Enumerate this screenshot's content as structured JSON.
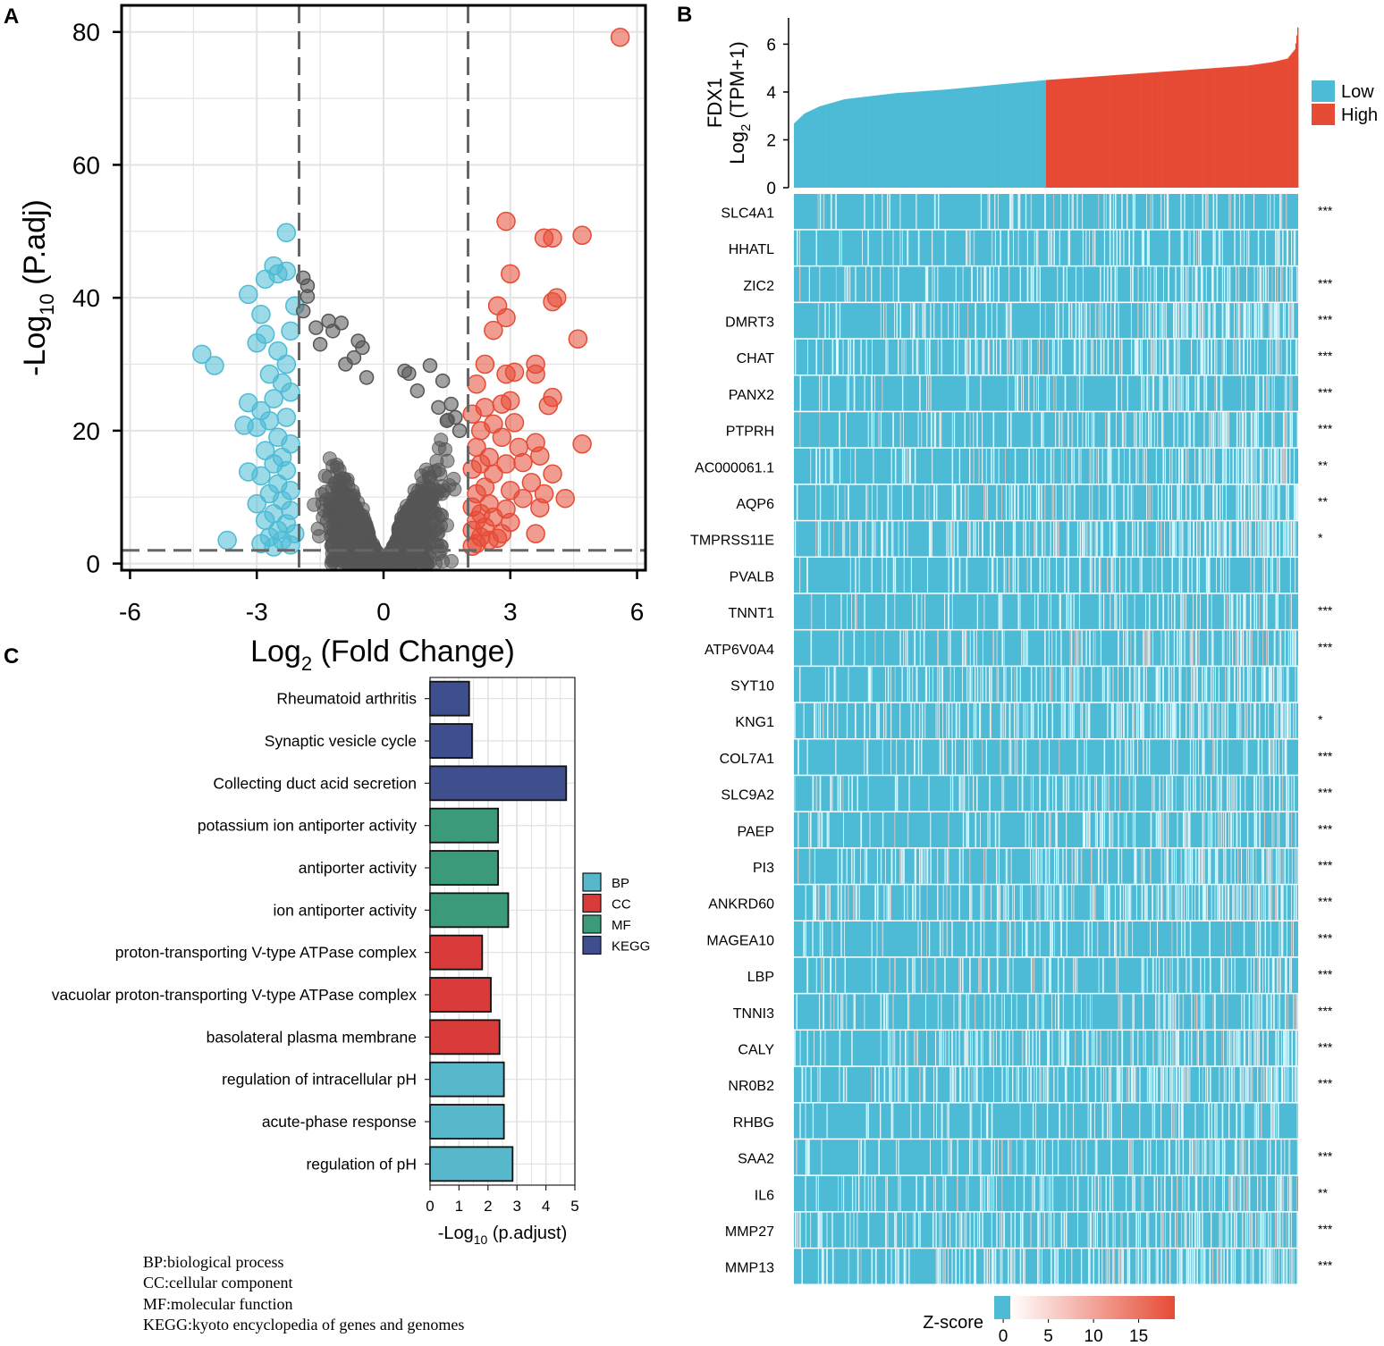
{
  "colors": {
    "up": "#E64B35",
    "down": "#4DBBD5",
    "ns": "#555555",
    "bp": "#58B8CB",
    "cc": "#D93A3A",
    "mf": "#3A9A7A",
    "kegg": "#3F4E8C",
    "heat_low": "#4DBBD5",
    "heat_high": "#E64B35"
  },
  "panel_labels": {
    "a": "A",
    "b": "B",
    "c": "C"
  },
  "chart_data": [
    {
      "id": "volcano",
      "type": "scatter",
      "xlabel_main": "Log",
      "xlabel_sub": "2",
      "xlabel_rest": " (Fold Change)",
      "ylabel_main": "-Log",
      "ylabel_sub": "10",
      "ylabel_rest": " (P.adj)",
      "xlim": [
        -6.2,
        6.2
      ],
      "ylim": [
        -1,
        84
      ],
      "xticks": [
        -6,
        -3,
        0,
        3,
        6
      ],
      "xtick_labels": [
        "-6",
        "-3",
        "0",
        "3",
        "6"
      ],
      "yticks": [
        0,
        20,
        40,
        60,
        80
      ],
      "ytick_labels": [
        "0",
        "20",
        "40",
        "60",
        "80"
      ],
      "vlines": [
        -2,
        2
      ],
      "hline": 2,
      "grid": true,
      "points": [
        {
          "x": 5.6,
          "y": 79.2,
          "g": "up"
        },
        {
          "x": 2.9,
          "y": 51.5,
          "g": "up"
        },
        {
          "x": 3.8,
          "y": 49.0,
          "g": "up"
        },
        {
          "x": 4.0,
          "y": 49.0,
          "g": "up"
        },
        {
          "x": 4.7,
          "y": 49.4,
          "g": "up"
        },
        {
          "x": 3.0,
          "y": 43.6,
          "g": "up"
        },
        {
          "x": 4.1,
          "y": 40.0,
          "g": "up"
        },
        {
          "x": 4.0,
          "y": 39.4,
          "g": "up"
        },
        {
          "x": 2.7,
          "y": 38.8,
          "g": "up"
        },
        {
          "x": 2.9,
          "y": 37.0,
          "g": "up"
        },
        {
          "x": 2.6,
          "y": 35.1,
          "g": "up"
        },
        {
          "x": 4.6,
          "y": 33.8,
          "g": "up"
        },
        {
          "x": 2.4,
          "y": 30.0,
          "g": "up"
        },
        {
          "x": 3.6,
          "y": 30.0,
          "g": "up"
        },
        {
          "x": 2.9,
          "y": 28.5,
          "g": "up"
        },
        {
          "x": 3.1,
          "y": 28.8,
          "g": "up"
        },
        {
          "x": 3.6,
          "y": 28.5,
          "g": "up"
        },
        {
          "x": 2.2,
          "y": 27.0,
          "g": "up"
        },
        {
          "x": 4.0,
          "y": 25.0,
          "g": "up"
        },
        {
          "x": 2.8,
          "y": 24.0,
          "g": "up"
        },
        {
          "x": 3.0,
          "y": 24.5,
          "g": "up"
        },
        {
          "x": 2.4,
          "y": 23.5,
          "g": "up"
        },
        {
          "x": 3.9,
          "y": 23.8,
          "g": "up"
        },
        {
          "x": 2.1,
          "y": 22.5,
          "g": "up"
        },
        {
          "x": 2.6,
          "y": 21.0,
          "g": "up"
        },
        {
          "x": 3.1,
          "y": 21.2,
          "g": "up"
        },
        {
          "x": 2.3,
          "y": 20.0,
          "g": "up"
        },
        {
          "x": 2.8,
          "y": 19.0,
          "g": "up"
        },
        {
          "x": 3.6,
          "y": 18.2,
          "g": "up"
        },
        {
          "x": 4.7,
          "y": 18.0,
          "g": "up"
        },
        {
          "x": 2.2,
          "y": 17.5,
          "g": "up"
        },
        {
          "x": 3.2,
          "y": 17.5,
          "g": "up"
        },
        {
          "x": 2.5,
          "y": 16.0,
          "g": "up"
        },
        {
          "x": 3.7,
          "y": 16.2,
          "g": "up"
        },
        {
          "x": 2.3,
          "y": 15.0,
          "g": "up"
        },
        {
          "x": 2.9,
          "y": 15.0,
          "g": "up"
        },
        {
          "x": 3.3,
          "y": 15.2,
          "g": "up"
        },
        {
          "x": 2.1,
          "y": 14.2,
          "g": "up"
        },
        {
          "x": 2.6,
          "y": 13.5,
          "g": "up"
        },
        {
          "x": 4.0,
          "y": 13.5,
          "g": "up"
        },
        {
          "x": 3.5,
          "y": 12.2,
          "g": "up"
        },
        {
          "x": 2.4,
          "y": 11.5,
          "g": "up"
        },
        {
          "x": 3.0,
          "y": 11.0,
          "g": "up"
        },
        {
          "x": 2.2,
          "y": 10.5,
          "g": "up"
        },
        {
          "x": 3.8,
          "y": 10.5,
          "g": "up"
        },
        {
          "x": 3.3,
          "y": 9.8,
          "g": "up"
        },
        {
          "x": 4.3,
          "y": 9.8,
          "g": "up"
        },
        {
          "x": 2.5,
          "y": 9.0,
          "g": "up"
        },
        {
          "x": 2.1,
          "y": 8.5,
          "g": "up"
        },
        {
          "x": 2.9,
          "y": 8.2,
          "g": "up"
        },
        {
          "x": 3.7,
          "y": 8.4,
          "g": "up"
        },
        {
          "x": 2.3,
          "y": 7.5,
          "g": "up"
        },
        {
          "x": 2.6,
          "y": 7.0,
          "g": "up"
        },
        {
          "x": 2.2,
          "y": 6.5,
          "g": "up"
        },
        {
          "x": 3.0,
          "y": 6.2,
          "g": "up"
        },
        {
          "x": 2.4,
          "y": 5.5,
          "g": "up"
        },
        {
          "x": 2.1,
          "y": 5.0,
          "g": "up"
        },
        {
          "x": 2.8,
          "y": 4.5,
          "g": "up"
        },
        {
          "x": 3.6,
          "y": 4.5,
          "g": "up"
        },
        {
          "x": 2.3,
          "y": 4.0,
          "g": "up"
        },
        {
          "x": 2.5,
          "y": 3.5,
          "g": "up"
        },
        {
          "x": 2.2,
          "y": 3.0,
          "g": "up"
        },
        {
          "x": 2.7,
          "y": 3.8,
          "g": "up"
        },
        {
          "x": 2.1,
          "y": 2.6,
          "g": "up"
        },
        {
          "x": -2.3,
          "y": 49.8,
          "g": "down"
        },
        {
          "x": -2.6,
          "y": 44.8,
          "g": "down"
        },
        {
          "x": -2.3,
          "y": 44.0,
          "g": "down"
        },
        {
          "x": -2.8,
          "y": 42.8,
          "g": "down"
        },
        {
          "x": -2.5,
          "y": 43.6,
          "g": "down"
        },
        {
          "x": -3.2,
          "y": 40.5,
          "g": "down"
        },
        {
          "x": -2.1,
          "y": 38.8,
          "g": "down"
        },
        {
          "x": -2.9,
          "y": 37.5,
          "g": "down"
        },
        {
          "x": -2.2,
          "y": 35.0,
          "g": "down"
        },
        {
          "x": -2.8,
          "y": 34.5,
          "g": "down"
        },
        {
          "x": -3.0,
          "y": 33.2,
          "g": "down"
        },
        {
          "x": -4.3,
          "y": 31.5,
          "g": "down"
        },
        {
          "x": -2.5,
          "y": 32.0,
          "g": "down"
        },
        {
          "x": -4.0,
          "y": 29.8,
          "g": "down"
        },
        {
          "x": -2.3,
          "y": 30.0,
          "g": "down"
        },
        {
          "x": -2.7,
          "y": 28.5,
          "g": "down"
        },
        {
          "x": -2.4,
          "y": 27.2,
          "g": "down"
        },
        {
          "x": -2.2,
          "y": 25.8,
          "g": "down"
        },
        {
          "x": -3.2,
          "y": 24.2,
          "g": "down"
        },
        {
          "x": -2.6,
          "y": 24.8,
          "g": "down"
        },
        {
          "x": -2.9,
          "y": 23.0,
          "g": "down"
        },
        {
          "x": -2.3,
          "y": 22.0,
          "g": "down"
        },
        {
          "x": -2.7,
          "y": 21.5,
          "g": "down"
        },
        {
          "x": -3.3,
          "y": 20.8,
          "g": "down"
        },
        {
          "x": -3.0,
          "y": 20.5,
          "g": "down"
        },
        {
          "x": -2.5,
          "y": 19.0,
          "g": "down"
        },
        {
          "x": -2.2,
          "y": 18.0,
          "g": "down"
        },
        {
          "x": -2.8,
          "y": 17.0,
          "g": "down"
        },
        {
          "x": -2.4,
          "y": 16.0,
          "g": "down"
        },
        {
          "x": -2.6,
          "y": 15.0,
          "g": "down"
        },
        {
          "x": -3.2,
          "y": 13.8,
          "g": "down"
        },
        {
          "x": -2.3,
          "y": 14.0,
          "g": "down"
        },
        {
          "x": -2.9,
          "y": 13.2,
          "g": "down"
        },
        {
          "x": -2.5,
          "y": 12.0,
          "g": "down"
        },
        {
          "x": -2.2,
          "y": 11.0,
          "g": "down"
        },
        {
          "x": -2.7,
          "y": 10.5,
          "g": "down"
        },
        {
          "x": -2.4,
          "y": 9.5,
          "g": "down"
        },
        {
          "x": -3.0,
          "y": 9.0,
          "g": "down"
        },
        {
          "x": -2.2,
          "y": 8.0,
          "g": "down"
        },
        {
          "x": -2.6,
          "y": 7.5,
          "g": "down"
        },
        {
          "x": -2.8,
          "y": 6.5,
          "g": "down"
        },
        {
          "x": -2.3,
          "y": 6.0,
          "g": "down"
        },
        {
          "x": -2.5,
          "y": 5.0,
          "g": "down"
        },
        {
          "x": -2.1,
          "y": 4.5,
          "g": "down"
        },
        {
          "x": -2.7,
          "y": 4.0,
          "g": "down"
        },
        {
          "x": -2.4,
          "y": 3.5,
          "g": "down"
        },
        {
          "x": -3.7,
          "y": 3.5,
          "g": "down"
        },
        {
          "x": -2.9,
          "y": 3.0,
          "g": "down"
        },
        {
          "x": -2.2,
          "y": 2.8,
          "g": "down"
        },
        {
          "x": -2.6,
          "y": 2.5,
          "g": "down"
        },
        {
          "x": -1.9,
          "y": 43.0,
          "g": "ns"
        },
        {
          "x": -1.8,
          "y": 41.8,
          "g": "ns"
        },
        {
          "x": -1.8,
          "y": 40.2,
          "g": "ns"
        },
        {
          "x": -1.9,
          "y": 38.0,
          "g": "ns"
        },
        {
          "x": -1.3,
          "y": 36.5,
          "g": "ns"
        },
        {
          "x": -1.0,
          "y": 36.2,
          "g": "ns"
        },
        {
          "x": -1.2,
          "y": 35.0,
          "g": "ns"
        },
        {
          "x": -1.6,
          "y": 35.5,
          "g": "ns"
        },
        {
          "x": -0.6,
          "y": 33.5,
          "g": "ns"
        },
        {
          "x": -0.5,
          "y": 32.5,
          "g": "ns"
        },
        {
          "x": -0.7,
          "y": 31.0,
          "g": "ns"
        },
        {
          "x": -1.5,
          "y": 33.0,
          "g": "ns"
        },
        {
          "x": -0.9,
          "y": 30.0,
          "g": "ns"
        },
        {
          "x": 0.5,
          "y": 29.0,
          "g": "ns"
        },
        {
          "x": 0.6,
          "y": 28.6,
          "g": "ns"
        },
        {
          "x": 1.1,
          "y": 29.8,
          "g": "ns"
        },
        {
          "x": 0.8,
          "y": 26.0,
          "g": "ns"
        },
        {
          "x": 1.4,
          "y": 27.5,
          "g": "ns"
        },
        {
          "x": 1.6,
          "y": 24.0,
          "g": "ns"
        },
        {
          "x": 1.3,
          "y": 23.5,
          "g": "ns"
        },
        {
          "x": 1.7,
          "y": 22.0,
          "g": "ns"
        },
        {
          "x": 1.5,
          "y": 21.5,
          "g": "ns"
        },
        {
          "x": 1.8,
          "y": 20.0,
          "g": "ns"
        },
        {
          "x": -0.4,
          "y": 28.0,
          "g": "ns"
        }
      ]
    },
    {
      "id": "expression",
      "type": "bar",
      "ylabel_gene": "FDX1",
      "ylabel_main": "Log",
      "ylabel_sub": "2",
      "ylabel_rest": " (TPM+1)",
      "ylim": [
        0,
        6.8
      ],
      "yticks": [
        0,
        2,
        4,
        6
      ],
      "ytick_labels": [
        "0",
        "2",
        "4",
        "6"
      ],
      "n_samples": 540,
      "low_fraction": 0.5,
      "profile_quantiles": [
        0,
        0.02,
        0.05,
        0.1,
        0.2,
        0.3,
        0.4,
        0.5,
        0.6,
        0.7,
        0.8,
        0.9,
        0.95,
        0.98,
        0.995,
        1
      ],
      "profile_values": [
        2.7,
        3.1,
        3.4,
        3.7,
        3.95,
        4.1,
        4.3,
        4.5,
        4.65,
        4.8,
        4.95,
        5.1,
        5.25,
        5.4,
        5.8,
        6.7
      ],
      "legend": [
        {
          "label": "Low",
          "key": "heat_low"
        },
        {
          "label": "High",
          "key": "heat_high"
        }
      ]
    },
    {
      "id": "heatmap",
      "type": "heatmap",
      "genes": [
        "SLC4A1",
        "HHATL",
        "ZIC2",
        "DMRT3",
        "CHAT",
        "PANX2",
        "PTPRH",
        "AC000061.1",
        "AQP6",
        "TMPRSS11E",
        "PVALB",
        "TNNT1",
        "ATP6V0A4",
        "SYT10",
        "KNG1",
        "COL7A1",
        "SLC9A2",
        "PAEP",
        "PI3",
        "ANKRD60",
        "MAGEA10",
        "LBP",
        "TNNI3",
        "CALY",
        "NR0B2",
        "RHBG",
        "SAA2",
        "IL6",
        "MMP27",
        "MMP13"
      ],
      "significance": [
        "***",
        "",
        "***",
        "***",
        "***",
        "***",
        "***",
        "**",
        "**",
        "*",
        "",
        "***",
        "***",
        "",
        "*",
        "***",
        "***",
        "***",
        "***",
        "***",
        "***",
        "***",
        "***",
        "***",
        "***",
        "",
        "***",
        "**",
        "***",
        "***"
      ],
      "colorbar_label": "Z-score",
      "colorbar_range": [
        -1,
        19
      ],
      "colorbar_ticks": [
        0,
        5,
        10,
        15
      ],
      "colorbar_tick_labels": [
        "0",
        "5",
        "10",
        "15"
      ]
    },
    {
      "id": "enrichment",
      "type": "bar",
      "orientation": "horizontal",
      "categories": [
        "Rheumatoid arthritis",
        "Synaptic vesicle cycle",
        "Collecting duct acid secretion",
        "potassium ion antiporter activity",
        "antiporter activity",
        "ion antiporter activity",
        "proton-transporting V-type ATPase complex",
        "vacuolar proton-transporting V-type ATPase complex",
        "basolateral plasma membrane",
        "regulation of intracellular pH",
        "acute-phase response",
        "regulation of pH"
      ],
      "values": [
        1.35,
        1.45,
        4.7,
        2.35,
        2.35,
        2.7,
        1.8,
        2.1,
        2.4,
        2.55,
        2.55,
        2.85
      ],
      "groups": [
        "KEGG",
        "KEGG",
        "KEGG",
        "MF",
        "MF",
        "MF",
        "CC",
        "CC",
        "CC",
        "BP",
        "BP",
        "BP"
      ],
      "xlim": [
        0,
        5
      ],
      "xticks": [
        0,
        1,
        2,
        3,
        4,
        5
      ],
      "xtick_labels": [
        "0",
        "1",
        "2",
        "3",
        "4",
        "5"
      ],
      "xlabel_main": "-Log",
      "xlabel_sub": "10",
      "xlabel_rest": " (p.adjust)",
      "legend": [
        {
          "label": "BP",
          "key": "bp"
        },
        {
          "label": "CC",
          "key": "cc"
        },
        {
          "label": "MF",
          "key": "mf"
        },
        {
          "label": "KEGG",
          "key": "kegg"
        }
      ]
    }
  ],
  "footnotes": [
    "BP:biological process",
    "CC:cellular component",
    "MF:molecular function",
    "KEGG:kyoto encyclopedia of genes and genomes"
  ]
}
